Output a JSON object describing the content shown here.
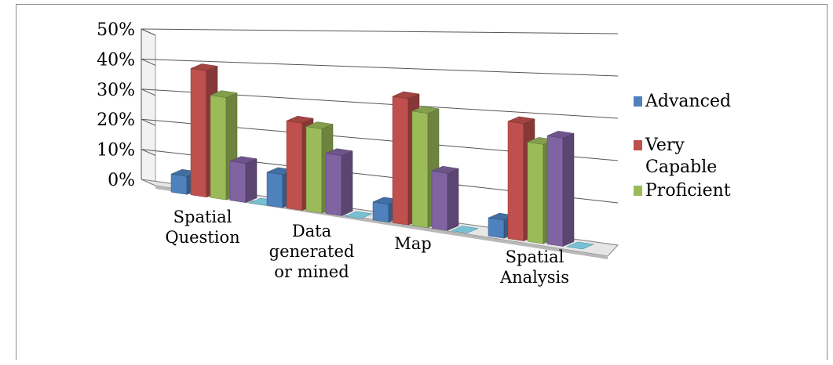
{
  "chart_data": {
    "type": "bar",
    "title": "",
    "xlabel": "",
    "ylabel": "",
    "ylim": [
      0,
      50
    ],
    "yticks": [
      "0%",
      "10%",
      "20%",
      "30%",
      "40%",
      "50%"
    ],
    "categories": [
      [
        "Spatial",
        "Question"
      ],
      [
        "Data",
        "generated",
        "or mined"
      ],
      [
        "Map"
      ],
      [
        "Spatial",
        "Analysis"
      ]
    ],
    "series": [
      {
        "name": "Advanced",
        "color": "#4f81bd",
        "values": [
          6,
          11,
          6,
          6
        ]
      },
      {
        "name": "Very Capable",
        "color": "#c0504d",
        "values": [
          42,
          29,
          42,
          39
        ]
      },
      {
        "name": "Proficient",
        "color": "#9bbb59",
        "values": [
          34,
          28,
          38,
          33
        ]
      },
      {
        "name": "",
        "color": "#8064a2",
        "values": [
          13,
          20,
          19,
          36
        ]
      },
      {
        "name": "",
        "color": "#4bacc6",
        "values": [
          0,
          0,
          0,
          0
        ]
      }
    ],
    "legend": {
      "placement": "right",
      "entries": [
        {
          "lines": [
            "Advanced"
          ],
          "color": "#4f81bd"
        },
        {
          "lines": [
            "Very",
            "Capable"
          ],
          "color": "#c0504d"
        },
        {
          "lines": [
            "Proficient"
          ],
          "color": "#9bbb59"
        }
      ]
    },
    "grid": true,
    "perspective": "3d"
  }
}
